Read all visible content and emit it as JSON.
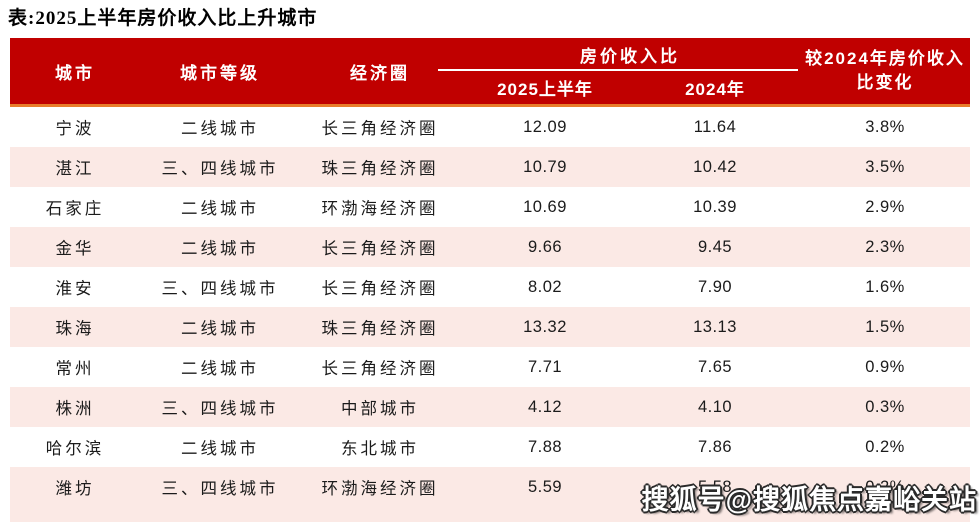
{
  "title": "表:2025上半年房价收入比上升城市",
  "watermark": "搜狐号@搜狐焦点嘉峪关站",
  "colors": {
    "header_red": "#C00000",
    "accent_orange": "#E87D2B",
    "row_pink": "#FBE9E5",
    "header_text": "#FFFFFF",
    "body_text": "#1B1B1B"
  },
  "chart_data": {
    "type": "table",
    "title": "2025上半年房价收入比上升城市",
    "header": {
      "city": "城市",
      "tier": "城市等级",
      "circle": "经济圈",
      "group": "房价收入比",
      "sub_2025": "2025上半年",
      "sub_2024": "2024年",
      "change_line1": "较2024年房价收入",
      "change_line2": "比变化"
    },
    "columns": [
      "城市",
      "城市等级",
      "经济圈",
      "房价收入比 2025上半年",
      "房价收入比 2024年",
      "较2024年房价收入比变化"
    ],
    "rows": [
      {
        "city": "宁波",
        "tier": "二线城市",
        "circle": "长三角经济圈",
        "h2025": "12.09",
        "y2024": "11.64",
        "change": "3.8%"
      },
      {
        "city": "湛江",
        "tier": "三、四线城市",
        "circle": "珠三角经济圈",
        "h2025": "10.79",
        "y2024": "10.42",
        "change": "3.5%"
      },
      {
        "city": "石家庄",
        "tier": "二线城市",
        "circle": "环渤海经济圈",
        "h2025": "10.69",
        "y2024": "10.39",
        "change": "2.9%"
      },
      {
        "city": "金华",
        "tier": "二线城市",
        "circle": "长三角经济圈",
        "h2025": "9.66",
        "y2024": "9.45",
        "change": "2.3%"
      },
      {
        "city": "淮安",
        "tier": "三、四线城市",
        "circle": "长三角经济圈",
        "h2025": "8.02",
        "y2024": "7.90",
        "change": "1.6%"
      },
      {
        "city": "珠海",
        "tier": "二线城市",
        "circle": "珠三角经济圈",
        "h2025": "13.32",
        "y2024": "13.13",
        "change": "1.5%"
      },
      {
        "city": "常州",
        "tier": "二线城市",
        "circle": "长三角经济圈",
        "h2025": "7.71",
        "y2024": "7.65",
        "change": "0.9%"
      },
      {
        "city": "株洲",
        "tier": "三、四线城市",
        "circle": "中部城市",
        "h2025": "4.12",
        "y2024": "4.10",
        "change": "0.3%"
      },
      {
        "city": "哈尔滨",
        "tier": "二线城市",
        "circle": "东北城市",
        "h2025": "7.88",
        "y2024": "7.86",
        "change": "0.2%"
      },
      {
        "city": "潍坊",
        "tier": "三、四线城市",
        "circle": "环渤海经济圈",
        "h2025": "5.59",
        "y2024": "5.58",
        "change": "0.2%"
      }
    ]
  }
}
